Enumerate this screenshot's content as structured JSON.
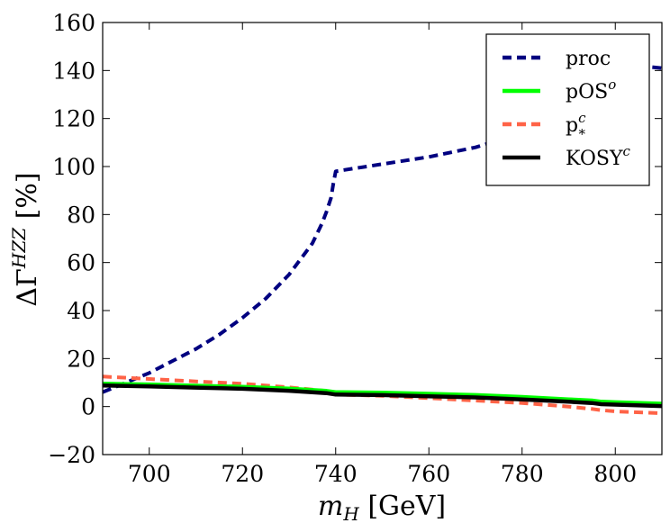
{
  "chart_data": {
    "type": "line",
    "title": "",
    "xlabel": "m_H [GeV]",
    "ylabel": "ΔΓ^HZZ [%]",
    "xlim": [
      690,
      810
    ],
    "ylim": [
      -20,
      160
    ],
    "xticks": [
      700,
      720,
      740,
      760,
      780,
      800
    ],
    "yticks": [
      -20,
      0,
      20,
      40,
      60,
      80,
      100,
      120,
      140,
      160
    ],
    "xtick_labels": [
      "700",
      "720",
      "740",
      "760",
      "780",
      "800"
    ],
    "ytick_labels": [
      "−20",
      "0",
      "20",
      "40",
      "60",
      "80",
      "100",
      "120",
      "140",
      "160"
    ],
    "grid": false,
    "legend_position": "top-right",
    "series": [
      {
        "name": "proc",
        "color": "#000080",
        "style": "dashed",
        "x": [
          690,
          695,
          700,
          705,
          710,
          715,
          720,
          725,
          730,
          735,
          737,
          738,
          739,
          739.5,
          740,
          745,
          750,
          755,
          760,
          765,
          770,
          775,
          780,
          785,
          790,
          795,
          800,
          805,
          810
        ],
        "y": [
          6,
          10,
          14,
          19,
          24,
          30,
          37,
          45,
          55,
          68,
          76,
          81,
          87,
          93,
          98,
          99.5,
          101,
          102.5,
          104,
          106,
          108,
          111,
          114,
          118,
          123,
          129,
          135,
          142,
          141
        ]
      },
      {
        "name": "pOS^o",
        "color": "#00ff00",
        "style": "solid",
        "x": [
          690,
          700,
          710,
          720,
          730,
          738,
          740,
          750,
          760,
          770,
          780,
          790,
          795,
          797,
          800,
          810
        ],
        "y": [
          9.5,
          9.2,
          8.7,
          8.2,
          7.5,
          6.5,
          6.0,
          5.8,
          5.3,
          4.8,
          4.0,
          3.0,
          2.5,
          2.0,
          1.8,
          1.2
        ]
      },
      {
        "name": "p_*^c",
        "color": "#ff6347",
        "style": "dashed",
        "x": [
          690,
          700,
          710,
          720,
          730,
          738,
          740,
          750,
          760,
          770,
          780,
          790,
          795,
          797,
          800,
          810
        ],
        "y": [
          12.5,
          11.5,
          10.5,
          9.5,
          8.0,
          6.5,
          5.0,
          4.5,
          3.5,
          2.5,
          1.5,
          0.0,
          -1.0,
          -1.5,
          -2.0,
          -2.8
        ]
      },
      {
        "name": "KOSY^c",
        "color": "#000000",
        "style": "solid",
        "x": [
          690,
          700,
          710,
          720,
          730,
          738,
          740,
          750,
          760,
          770,
          780,
          790,
          795,
          797,
          800,
          810
        ],
        "y": [
          8.8,
          8.4,
          7.9,
          7.4,
          6.6,
          5.6,
          5.0,
          4.8,
          4.3,
          3.8,
          3.0,
          2.0,
          1.5,
          1.0,
          0.8,
          0.2
        ]
      }
    ],
    "legend": [
      {
        "series": 0,
        "label": "proc",
        "sup": "",
        "sub": ""
      },
      {
        "series": 1,
        "label": "pOS",
        "sup": "o",
        "sub": ""
      },
      {
        "series": 2,
        "label": "p",
        "sup": "c",
        "sub": "*"
      },
      {
        "series": 3,
        "label": "KOSY",
        "sup": "c",
        "sub": ""
      }
    ]
  }
}
